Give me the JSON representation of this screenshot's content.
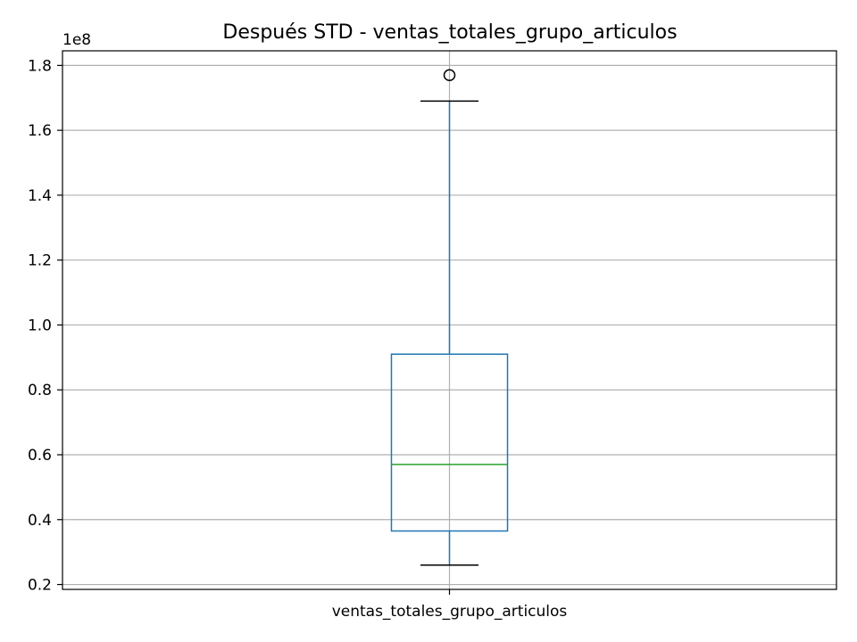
{
  "chart_data": {
    "type": "boxplot",
    "title": "Después STD - ventas_totales_grupo_articulos",
    "xlabel": "",
    "ylabel": "",
    "y_offset_label": "1e8",
    "y_scale_factor": 100000000,
    "ylim": [
      0.185,
      1.845
    ],
    "yticks": [
      0.2,
      0.4,
      0.6,
      0.8,
      1.0,
      1.2,
      1.4,
      1.6,
      1.8
    ],
    "ytick_labels": [
      "0.2",
      "0.4",
      "0.6",
      "0.8",
      "1.0",
      "1.2",
      "1.4",
      "1.6",
      "1.8"
    ],
    "categories": [
      "ventas_totales_grupo_articulos"
    ],
    "grid": true,
    "boxes": [
      {
        "category": "ventas_totales_grupo_articulos",
        "whisker_low": 0.26,
        "q1": 0.365,
        "median": 0.57,
        "q3": 0.91,
        "whisker_high": 1.69,
        "outliers": [
          1.77
        ]
      }
    ],
    "colors": {
      "box": "#1f77b4",
      "whisker": "#1f77b4",
      "caps": "#000000",
      "median": "#2ca02c",
      "outlier": "#000000",
      "grid": "#b0b0b0"
    }
  }
}
